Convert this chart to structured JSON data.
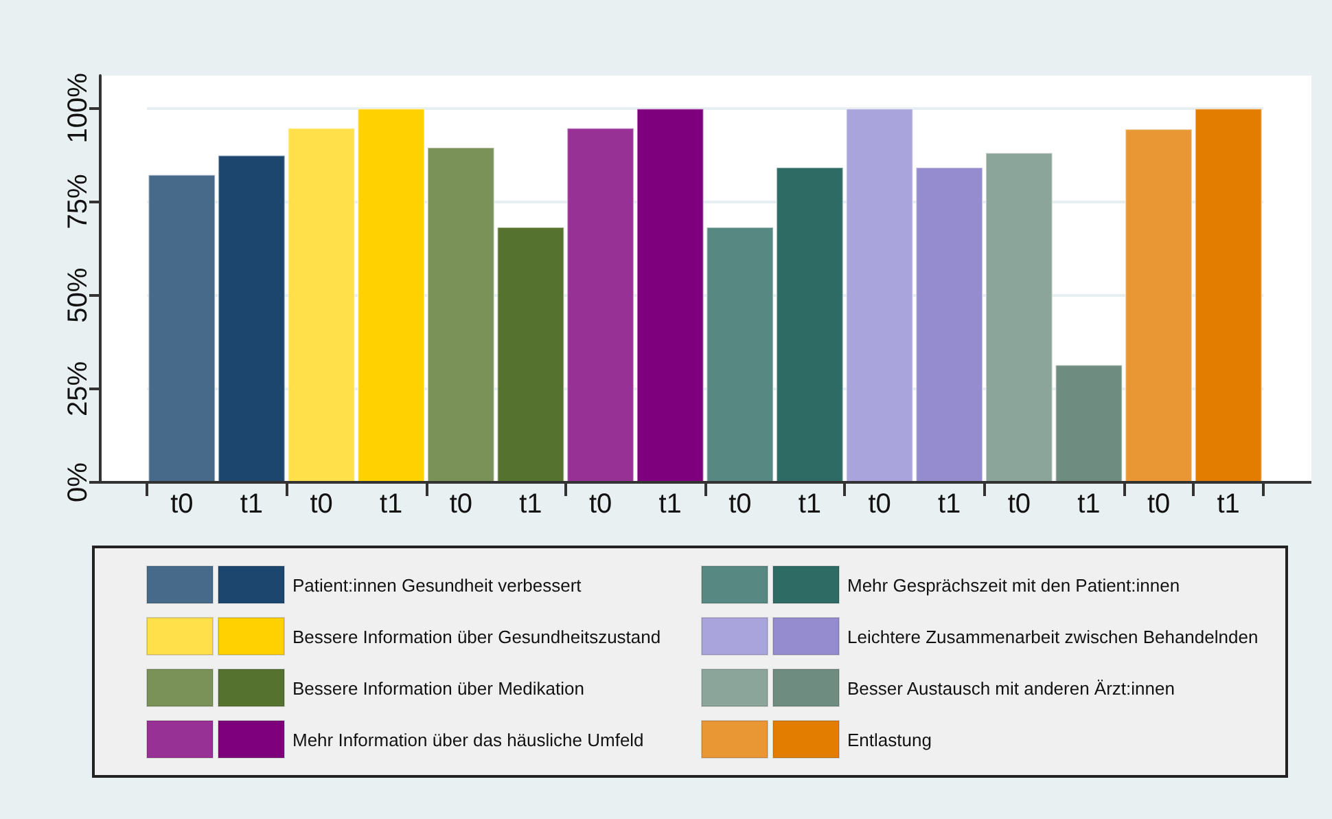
{
  "chart_data": {
    "type": "bar",
    "categories": [
      "t0",
      "t1",
      "t0",
      "t1",
      "t0",
      "t1",
      "t0",
      "t1",
      "t0",
      "t1",
      "t0",
      "t1",
      "t0",
      "t1",
      "t0",
      "t1"
    ],
    "stacked": true,
    "series": [
      {
        "name": "Patient:innen Gesundheit verbessert",
        "values": [
          82.3,
          87.5,
          null,
          null,
          null,
          null,
          null,
          null,
          null,
          null,
          null,
          null,
          null,
          null,
          null,
          null
        ],
        "colors": [
          "#476a8a",
          "#1d466e",
          null,
          null,
          null,
          null,
          null,
          null,
          null,
          null,
          null,
          null,
          null,
          null,
          null,
          null
        ]
      },
      {
        "name": "Bessere Information über Gesundheitszustand",
        "values": [
          null,
          null,
          94.8,
          100,
          null,
          null,
          null,
          null,
          null,
          null,
          null,
          null,
          null,
          null,
          null,
          null
        ],
        "colors": [
          null,
          null,
          "#ffe04a",
          "#ffd100",
          null,
          null,
          null,
          null,
          null,
          null,
          null,
          null,
          null,
          null,
          null,
          null
        ]
      },
      {
        "name": "Bessere Information über Medikation",
        "values": [
          null,
          null,
          null,
          null,
          89.6,
          68.3,
          null,
          null,
          null,
          null,
          null,
          null,
          null,
          null,
          null,
          null
        ],
        "colors": [
          null,
          null,
          null,
          null,
          "#7a9157",
          "#55722e",
          null,
          null,
          null,
          null,
          null,
          null,
          null,
          null,
          null,
          null
        ]
      },
      {
        "name": "Mehr Information über das häusliche Umfeld",
        "values": [
          null,
          null,
          null,
          null,
          null,
          null,
          94.8,
          100,
          null,
          null,
          null,
          null,
          null,
          null,
          null,
          null
        ],
        "colors": [
          null,
          null,
          null,
          null,
          null,
          null,
          "#973195",
          "#7e007d",
          null,
          null,
          null,
          null,
          null,
          null,
          null,
          null
        ]
      },
      {
        "name": "Mehr Gesprächszeit mit den Patient:innen",
        "values": [
          null,
          null,
          null,
          null,
          null,
          null,
          null,
          null,
          68.3,
          84.3,
          null,
          null,
          null,
          null,
          null,
          null
        ],
        "colors": [
          null,
          null,
          null,
          null,
          null,
          null,
          null,
          null,
          "#578882",
          "#2d6b64",
          null,
          null,
          null,
          null,
          null,
          null
        ]
      },
      {
        "name": "Leichtere Zusammenarbeit zwischen Behandelnden",
        "values": [
          null,
          null,
          null,
          null,
          null,
          null,
          null,
          null,
          null,
          null,
          100,
          84.3,
          null,
          null,
          null,
          null
        ],
        "colors": [
          null,
          null,
          null,
          null,
          null,
          null,
          null,
          null,
          null,
          null,
          "#a9a4dc",
          "#948ccf",
          null,
          null,
          null,
          null
        ]
      },
      {
        "name": "Besser Austausch mit anderen Ärzt:innen",
        "values": [
          null,
          null,
          null,
          null,
          null,
          null,
          null,
          null,
          null,
          null,
          null,
          null,
          88.2,
          31.5,
          null,
          null
        ],
        "colors": [
          null,
          null,
          null,
          null,
          null,
          null,
          null,
          null,
          null,
          null,
          null,
          null,
          "#8ba59a",
          "#6e8c80",
          null,
          null
        ]
      },
      {
        "name": "Entlastung",
        "values": [
          null,
          null,
          null,
          null,
          null,
          null,
          null,
          null,
          null,
          null,
          null,
          null,
          null,
          null,
          94.5,
          100
        ],
        "colors": [
          null,
          null,
          null,
          null,
          null,
          null,
          null,
          null,
          null,
          null,
          null,
          null,
          null,
          null,
          "#e99634",
          "#e27d00"
        ]
      }
    ],
    "ylim": [
      0,
      108.7
    ],
    "yticks": [
      {
        "value": 0,
        "label": "0%"
      },
      {
        "value": 25,
        "label": "25%"
      },
      {
        "value": 50,
        "label": "50%"
      },
      {
        "value": 75,
        "label": "75%"
      },
      {
        "value": 100,
        "label": "100%"
      }
    ],
    "grid": "y",
    "legend": "bottom"
  }
}
